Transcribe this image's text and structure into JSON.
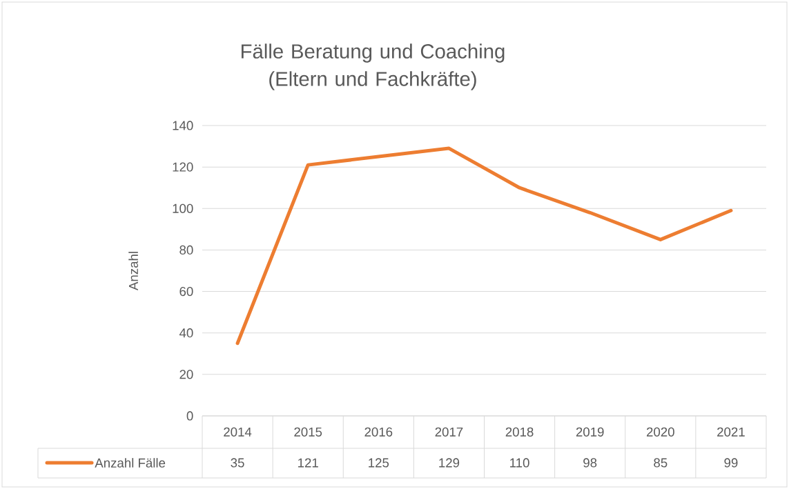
{
  "chart_data": {
    "type": "line",
    "title": "Fälle Beratung und Coaching (Eltern und Fachkräfte)",
    "ylabel": "Anzahl",
    "categories": [
      "2014",
      "2015",
      "2016",
      "2017",
      "2018",
      "2019",
      "2020",
      "2021"
    ],
    "series": [
      {
        "name": "Anzahl Fälle",
        "color": "#ed7d31",
        "values": [
          35,
          121,
          125,
          129,
          110,
          98,
          85,
          99
        ]
      }
    ],
    "ylim": [
      0,
      140
    ],
    "yticks": [
      0,
      20,
      40,
      60,
      80,
      100,
      120,
      140
    ],
    "grid": "y",
    "legend": "bottom",
    "data_labels": true,
    "line_style": "solid"
  }
}
